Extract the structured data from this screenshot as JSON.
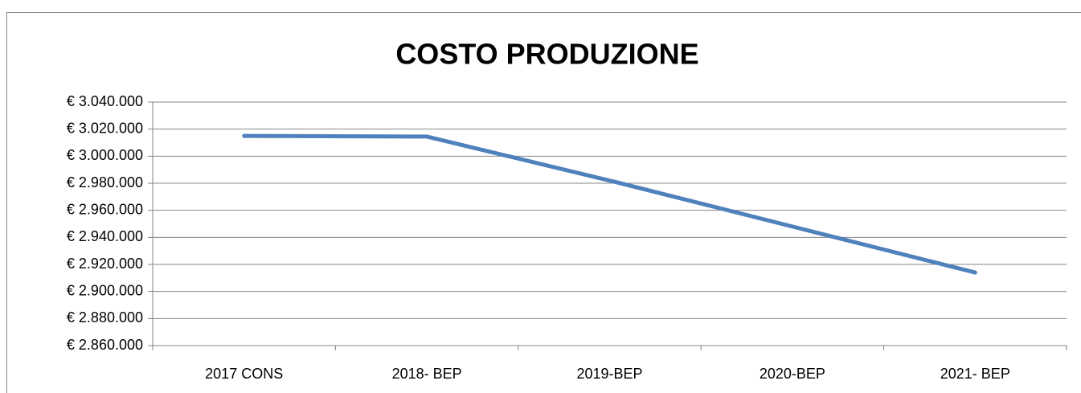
{
  "chart_data": {
    "type": "line",
    "title": "COSTO PRODUZIONE",
    "categories": [
      "2017 CONS",
      "2018- BEP",
      "2019-BEP",
      "2020-BEP",
      "2021- BEP"
    ],
    "series": [
      {
        "name": "COSTO PRODUZIONE",
        "color": "#4f81bd",
        "values": [
          3015000,
          3014500,
          2982000,
          2948000,
          2914000
        ]
      }
    ],
    "ylim": [
      2860000,
      3040000
    ],
    "yticks": [
      {
        "value": 2860000,
        "label": "€ 2.860.000"
      },
      {
        "value": 2880000,
        "label": "€ 2.880.000"
      },
      {
        "value": 2900000,
        "label": "€ 2.900.000"
      },
      {
        "value": 2920000,
        "label": "€ 2.920.000"
      },
      {
        "value": 2940000,
        "label": "€ 2.940.000"
      },
      {
        "value": 2960000,
        "label": "€ 2.960.000"
      },
      {
        "value": 2980000,
        "label": "€ 2.980.000"
      },
      {
        "value": 3000000,
        "label": "€ 3.000.000"
      },
      {
        "value": 3020000,
        "label": "€ 3.020.000"
      },
      {
        "value": 3040000,
        "label": "€ 3.040.000"
      }
    ],
    "grid": true
  }
}
